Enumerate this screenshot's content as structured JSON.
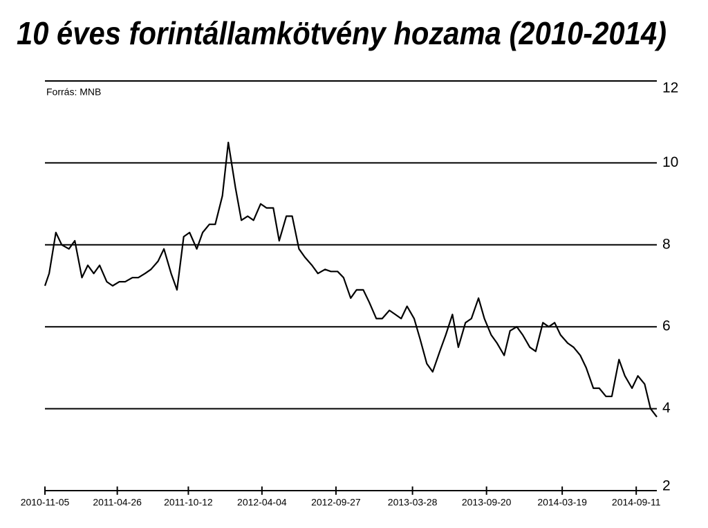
{
  "chart_data": {
    "type": "line",
    "title": "10 éves forintállamkötvény hozama (2010-2014)",
    "source": "Forrás: MNB",
    "x": [
      "2010-11-05",
      "2010-11-15",
      "2010-12-01",
      "2010-12-15",
      "2011-01-01",
      "2011-01-15",
      "2011-02-01",
      "2011-02-15",
      "2011-03-01",
      "2011-03-15",
      "2011-04-01",
      "2011-04-15",
      "2011-05-01",
      "2011-05-15",
      "2011-06-01",
      "2011-06-15",
      "2011-07-01",
      "2011-07-15",
      "2011-08-01",
      "2011-08-15",
      "2011-09-01",
      "2011-09-15",
      "2011-10-01",
      "2011-10-15",
      "2011-11-01",
      "2011-11-15",
      "2011-12-01",
      "2011-12-15",
      "2012-01-01",
      "2012-01-15",
      "2012-02-01",
      "2012-02-15",
      "2012-03-01",
      "2012-03-15",
      "2012-04-01",
      "2012-04-15",
      "2012-05-01",
      "2012-05-15",
      "2012-06-01",
      "2012-06-15",
      "2012-07-01",
      "2012-07-15",
      "2012-08-01",
      "2012-08-15",
      "2012-09-01",
      "2012-09-15",
      "2012-10-01",
      "2012-10-15",
      "2012-11-01",
      "2012-11-15",
      "2012-12-01",
      "2012-12-15",
      "2013-01-01",
      "2013-01-15",
      "2013-02-01",
      "2013-02-15",
      "2013-03-01",
      "2013-03-15",
      "2013-04-01",
      "2013-04-15",
      "2013-05-01",
      "2013-05-15",
      "2013-06-01",
      "2013-06-15",
      "2013-07-01",
      "2013-07-15",
      "2013-08-01",
      "2013-08-15",
      "2013-09-01",
      "2013-09-15",
      "2013-10-01",
      "2013-10-15",
      "2013-11-01",
      "2013-11-15",
      "2013-12-01",
      "2013-12-15",
      "2014-01-01",
      "2014-01-15",
      "2014-02-01",
      "2014-02-15",
      "2014-03-01",
      "2014-03-15",
      "2014-04-01",
      "2014-04-15",
      "2014-05-01",
      "2014-05-15",
      "2014-06-01",
      "2014-06-15",
      "2014-07-01",
      "2014-07-15",
      "2014-08-01",
      "2014-08-15",
      "2014-09-01",
      "2014-09-15",
      "2014-10-01",
      "2014-10-15",
      "2014-10-30"
    ],
    "series": [
      {
        "color": "#000000",
        "values": [
          7.0,
          7.3,
          8.3,
          8.0,
          7.9,
          8.1,
          7.2,
          7.5,
          7.3,
          7.5,
          7.1,
          7.0,
          7.1,
          7.1,
          7.2,
          7.2,
          7.3,
          7.4,
          7.6,
          7.9,
          7.3,
          6.9,
          8.2,
          8.3,
          7.9,
          8.3,
          8.5,
          8.5,
          9.2,
          10.5,
          9.4,
          8.6,
          8.7,
          8.6,
          9.0,
          8.9,
          8.9,
          8.1,
          8.7,
          8.7,
          7.9,
          7.7,
          7.5,
          7.3,
          7.4,
          7.35,
          7.35,
          7.2,
          6.7,
          6.9,
          6.9,
          6.6,
          6.2,
          6.2,
          6.4,
          6.3,
          6.2,
          6.5,
          6.2,
          5.7,
          5.1,
          4.9,
          5.4,
          5.8,
          6.3,
          5.5,
          6.1,
          6.2,
          6.7,
          6.2,
          5.8,
          5.6,
          5.3,
          5.9,
          6.0,
          5.8,
          5.5,
          5.4,
          6.1,
          6.0,
          6.1,
          5.8,
          5.6,
          5.5,
          5.3,
          5.0,
          4.5,
          4.5,
          4.3,
          4.3,
          5.2,
          4.8,
          4.5,
          4.8,
          4.6,
          4.0,
          3.8
        ]
      }
    ],
    "xlim": [
      "2010-11-05",
      "2014-10-30"
    ],
    "xticks": [
      "2010-11-05",
      "2011-04-26",
      "2011-10-12",
      "2012-04-04",
      "2012-09-27",
      "2013-03-28",
      "2013-09-20",
      "2014-03-19",
      "2014-09-11"
    ],
    "ylim": [
      2,
      12
    ],
    "yticks": [
      2,
      4,
      6,
      8,
      10,
      12
    ],
    "grid": true
  }
}
